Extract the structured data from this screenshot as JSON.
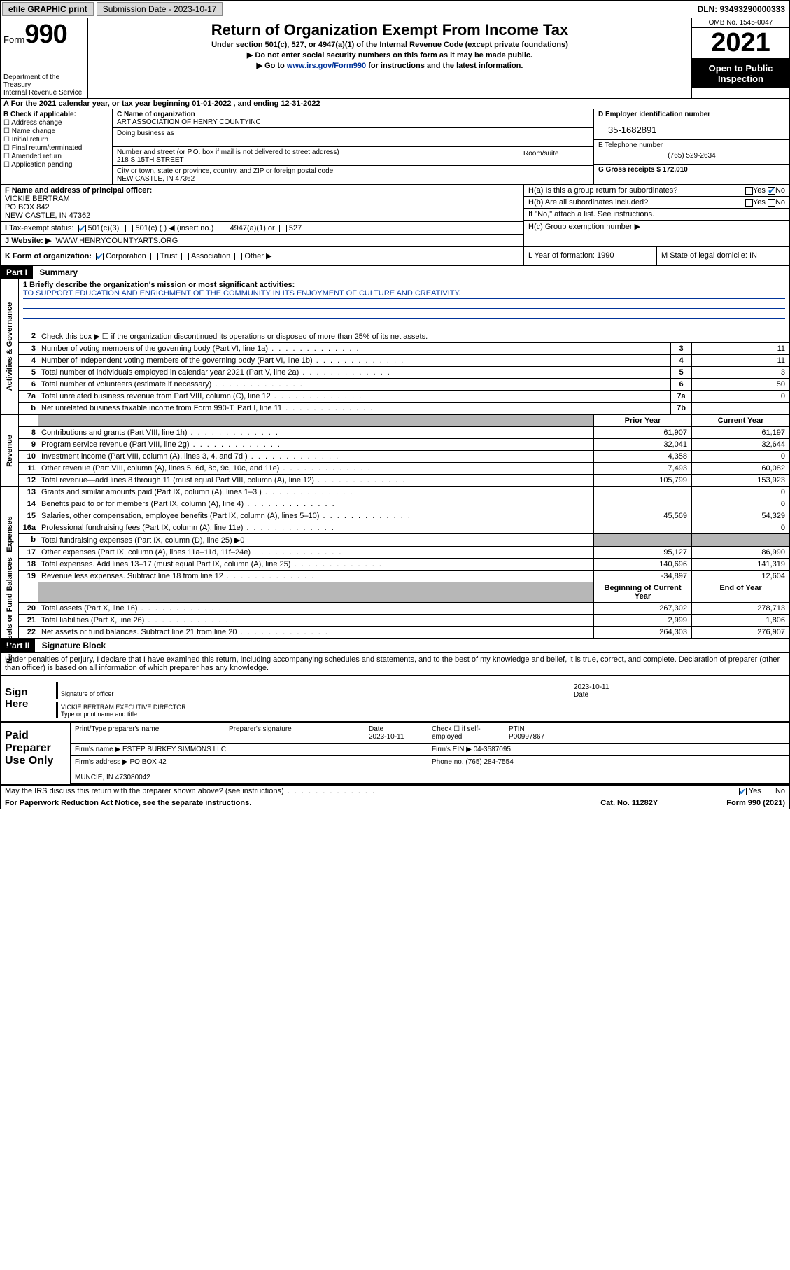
{
  "topbar": {
    "efile": "efile GRAPHIC print",
    "sublabel": "Submission Date - 2023-10-17",
    "dln": "DLN: 93493290000333"
  },
  "header": {
    "form_label": "Form",
    "form_no": "990",
    "dept": "Department of the Treasury",
    "irs": "Internal Revenue Service",
    "title": "Return of Organization Exempt From Income Tax",
    "line1": "Under section 501(c), 527, or 4947(a)(1) of the Internal Revenue Code (except private foundations)",
    "line2": "▶ Do not enter social security numbers on this form as it may be made public.",
    "line3_pre": "▶ Go to ",
    "line3_link": "www.irs.gov/Form990",
    "line3_post": " for instructions and the latest information.",
    "omb": "OMB No. 1545-0047",
    "year": "2021",
    "inspect1": "Open to Public",
    "inspect2": "Inspection"
  },
  "rowA": "A For the 2021 calendar year, or tax year beginning 01-01-2022  , and ending 12-31-2022",
  "boxB": {
    "hdr": "B Check if applicable:",
    "items": [
      "Address change",
      "Name change",
      "Initial return",
      "Final return/terminated",
      "Amended return",
      "Application pending"
    ]
  },
  "boxC": {
    "name_lbl": "C Name of organization",
    "name": "ART ASSOCIATION OF HENRY COUNTYINC",
    "dba_lbl": "Doing business as",
    "addr_lbl": "Number and street (or P.O. box if mail is not delivered to street address)",
    "room_lbl": "Room/suite",
    "addr": "218 S 15TH STREET",
    "city_lbl": "City or town, state or province, country, and ZIP or foreign postal code",
    "city": "NEW CASTLE, IN  47362"
  },
  "boxR": {
    "d_lbl": "D Employer identification number",
    "ein": "35-1682891",
    "e_lbl": "E Telephone number",
    "phone": "(765) 529-2634",
    "g_lbl": "G Gross receipts $ 172,010"
  },
  "boxF": {
    "f_lbl": "F Name and address of principal officer:",
    "name": "VICKIE BERTRAM",
    "addr1": "PO BOX 842",
    "addr2": "NEW CASTLE, IN  47362",
    "i_lbl": "Tax-exempt status:",
    "i_501c3": "501(c)(3)",
    "i_501c": "501(c) (  ) ◀ (insert no.)",
    "i_4947": "4947(a)(1) or",
    "i_527": "527",
    "j_lbl": "Website: ▶",
    "j_val": "WWW.HENRYCOUNTYARTS.ORG"
  },
  "boxH": {
    "ha": "H(a)  Is this a group return for subordinates?",
    "yes": "Yes",
    "no": "No",
    "hb": "H(b)  Are all subordinates included?",
    "hb2": "If \"No,\" attach a list. See instructions.",
    "hc": "H(c)  Group exemption number ▶"
  },
  "rowK": {
    "k": "K Form of organization:",
    "opts": [
      "Corporation",
      "Trust",
      "Association",
      "Other ▶"
    ],
    "l": "L Year of formation: 1990",
    "m": "M State of legal domicile: IN"
  },
  "part1": {
    "hdr": "Part I",
    "title": "Summary"
  },
  "summary": {
    "s1": {
      "vlabel": "Activities & Governance",
      "l1a": "1  Briefly describe the organization's mission or most significant activities:",
      "l1b": "TO SUPPORT EDUCATION AND ENRICHMENT OF THE COMMUNITY IN ITS ENJOYMENT OF CULTURE AND CREATIVITY.",
      "l2": "Check this box ▶ ☐  if the organization discontinued its operations or disposed of more than 25% of its net assets.",
      "rows": [
        {
          "n": "3",
          "d": "Number of voting members of the governing body (Part VI, line 1a)",
          "b": "3",
          "v": "11"
        },
        {
          "n": "4",
          "d": "Number of independent voting members of the governing body (Part VI, line 1b)",
          "b": "4",
          "v": "11"
        },
        {
          "n": "5",
          "d": "Total number of individuals employed in calendar year 2021 (Part V, line 2a)",
          "b": "5",
          "v": "3"
        },
        {
          "n": "6",
          "d": "Total number of volunteers (estimate if necessary)",
          "b": "6",
          "v": "50"
        },
        {
          "n": "7a",
          "d": "Total unrelated business revenue from Part VIII, column (C), line 12",
          "b": "7a",
          "v": "0"
        },
        {
          "n": "b",
          "d": "Net unrelated business taxable income from Form 990-T, Part I, line 11",
          "b": "7b",
          "v": ""
        }
      ]
    },
    "colhdr": {
      "c1": "Prior Year",
      "c2": "Current Year"
    },
    "revenue": {
      "vlabel": "Revenue",
      "rows": [
        {
          "n": "8",
          "d": "Contributions and grants (Part VIII, line 1h)",
          "c1": "61,907",
          "c2": "61,197"
        },
        {
          "n": "9",
          "d": "Program service revenue (Part VIII, line 2g)",
          "c1": "32,041",
          "c2": "32,644"
        },
        {
          "n": "10",
          "d": "Investment income (Part VIII, column (A), lines 3, 4, and 7d )",
          "c1": "4,358",
          "c2": "0"
        },
        {
          "n": "11",
          "d": "Other revenue (Part VIII, column (A), lines 5, 6d, 8c, 9c, 10c, and 11e)",
          "c1": "7,493",
          "c2": "60,082"
        },
        {
          "n": "12",
          "d": "Total revenue—add lines 8 through 11 (must equal Part VIII, column (A), line 12)",
          "c1": "105,799",
          "c2": "153,923"
        }
      ]
    },
    "expenses": {
      "vlabel": "Expenses",
      "rows": [
        {
          "n": "13",
          "d": "Grants and similar amounts paid (Part IX, column (A), lines 1–3 )",
          "c1": "",
          "c2": "0"
        },
        {
          "n": "14",
          "d": "Benefits paid to or for members (Part IX, column (A), line 4)",
          "c1": "",
          "c2": "0"
        },
        {
          "n": "15",
          "d": "Salaries, other compensation, employee benefits (Part IX, column (A), lines 5–10)",
          "c1": "45,569",
          "c2": "54,329"
        },
        {
          "n": "16a",
          "d": "Professional fundraising fees (Part IX, column (A), line 11e)",
          "c1": "",
          "c2": "0"
        },
        {
          "n": "b",
          "d": "Total fundraising expenses (Part IX, column (D), line 25) ▶0",
          "c1": "shade",
          "c2": "shade"
        },
        {
          "n": "17",
          "d": "Other expenses (Part IX, column (A), lines 11a–11d, 11f–24e)",
          "c1": "95,127",
          "c2": "86,990"
        },
        {
          "n": "18",
          "d": "Total expenses. Add lines 13–17 (must equal Part IX, column (A), line 25)",
          "c1": "140,696",
          "c2": "141,319"
        },
        {
          "n": "19",
          "d": "Revenue less expenses. Subtract line 18 from line 12",
          "c1": "-34,897",
          "c2": "12,604"
        }
      ]
    },
    "colhdr2": {
      "c1": "Beginning of Current Year",
      "c2": "End of Year"
    },
    "net": {
      "vlabel": "Net Assets or Fund Balances",
      "rows": [
        {
          "n": "20",
          "d": "Total assets (Part X, line 16)",
          "c1": "267,302",
          "c2": "278,713"
        },
        {
          "n": "21",
          "d": "Total liabilities (Part X, line 26)",
          "c1": "2,999",
          "c2": "1,806"
        },
        {
          "n": "22",
          "d": "Net assets or fund balances. Subtract line 21 from line 20",
          "c1": "264,303",
          "c2": "276,907"
        }
      ]
    }
  },
  "part2": {
    "hdr": "Part II",
    "title": "Signature Block"
  },
  "sigtext": "Under penalties of perjury, I declare that I have examined this return, including accompanying schedules and statements, and to the best of my knowledge and belief, it is true, correct, and complete. Declaration of preparer (other than officer) is based on all information of which preparer has any knowledge.",
  "sign": {
    "lab": "Sign Here",
    "date": "2023-10-11",
    "sig_lbl": "Signature of officer",
    "date_lbl": "Date",
    "name": "VICKIE BERTRAM  EXECUTIVE DIRECTOR",
    "name_lbl": "Type or print name and title"
  },
  "prep": {
    "lab": "Paid Preparer Use Only",
    "h1": "Print/Type preparer's name",
    "h2": "Preparer's signature",
    "h3": "Date",
    "h3v": "2023-10-11",
    "h4": "Check ☐ if self-employed",
    "h5": "PTIN",
    "h5v": "P00997867",
    "f1": "Firm's name    ▶ ESTEP BURKEY SIMMONS LLC",
    "f1r": "Firm's EIN ▶ 04-3587095",
    "f2": "Firm's address ▶ PO BOX 42",
    "f2r": "Phone no. (765) 284-7554",
    "f3": "MUNCIE, IN  473080042"
  },
  "footer": {
    "q": "May the IRS discuss this return with the preparer shown above? (see instructions)",
    "yes": "Yes",
    "no": "No",
    "paperwork": "For Paperwork Reduction Act Notice, see the separate instructions.",
    "cat": "Cat. No. 11282Y",
    "formno": "Form 990 (2021)"
  }
}
